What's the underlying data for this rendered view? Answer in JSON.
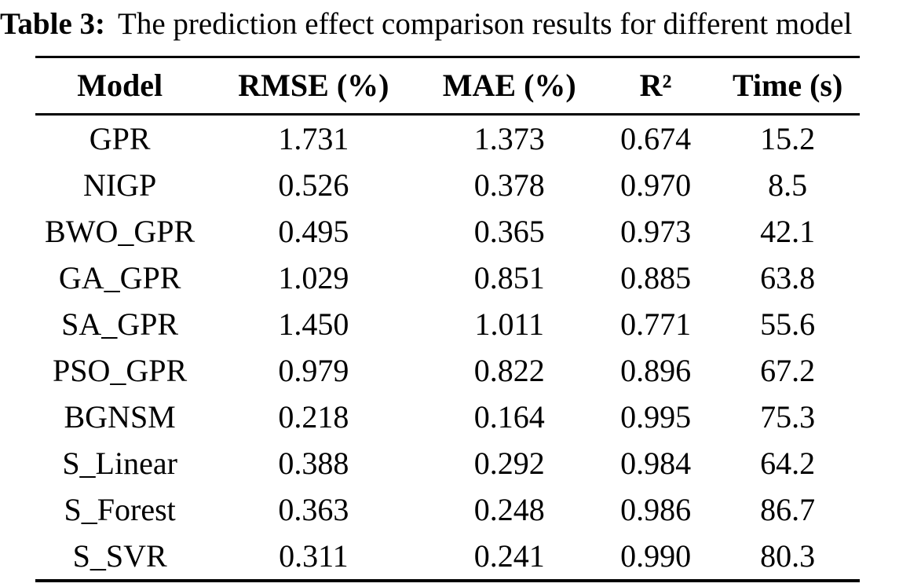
{
  "caption": {
    "label": "Table 3:",
    "text": "The prediction effect comparison results for different model"
  },
  "table": {
    "columns": [
      "Model",
      "RMSE (%)",
      "MAE (%)",
      "R²",
      "Time (s)"
    ],
    "rows": [
      {
        "model": "GPR",
        "rmse": "1.731",
        "mae": "1.373",
        "r2": "0.674",
        "time": "15.2"
      },
      {
        "model": "NIGP",
        "rmse": "0.526",
        "mae": "0.378",
        "r2": "0.970",
        "time": "8.5"
      },
      {
        "model": "BWO_GPR",
        "rmse": "0.495",
        "mae": "0.365",
        "r2": "0.973",
        "time": "42.1"
      },
      {
        "model": "GA_GPR",
        "rmse": "1.029",
        "mae": "0.851",
        "r2": "0.885",
        "time": "63.8"
      },
      {
        "model": "SA_GPR",
        "rmse": "1.450",
        "mae": "1.011",
        "r2": "0.771",
        "time": "55.6"
      },
      {
        "model": "PSO_GPR",
        "rmse": "0.979",
        "mae": "0.822",
        "r2": "0.896",
        "time": "67.2"
      },
      {
        "model": "BGNSM",
        "rmse": "0.218",
        "mae": "0.164",
        "r2": "0.995",
        "time": "75.3"
      },
      {
        "model": "S_Linear",
        "rmse": "0.388",
        "mae": "0.292",
        "r2": "0.984",
        "time": "64.2"
      },
      {
        "model": "S_Forest",
        "rmse": "0.363",
        "mae": "0.248",
        "r2": "0.986",
        "time": "86.7"
      },
      {
        "model": "S_SVR",
        "rmse": "0.311",
        "mae": "0.241",
        "r2": "0.990",
        "time": "80.3"
      }
    ]
  },
  "colors": {
    "text": "#000000",
    "background": "#ffffff",
    "rule": "#000000"
  }
}
